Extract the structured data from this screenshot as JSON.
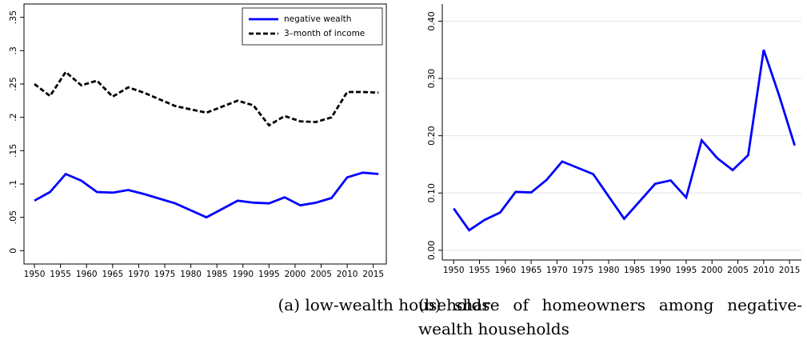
{
  "chart_data": [
    {
      "type": "line",
      "caption": "(a) low-wealth households",
      "x": [
        1950,
        1953,
        1956,
        1959,
        1962,
        1965,
        1968,
        1971,
        1977,
        1983,
        1989,
        1992,
        1995,
        1998,
        2001,
        2004,
        2007,
        2010,
        2013,
        2016
      ],
      "series": [
        {
          "name": "negative wealth",
          "color": "#0000ff",
          "dash": "solid",
          "values": [
            0.075,
            0.088,
            0.115,
            0.105,
            0.088,
            0.087,
            0.091,
            0.085,
            0.071,
            0.05,
            0.075,
            0.072,
            0.071,
            0.08,
            0.068,
            0.072,
            0.079,
            0.11,
            0.117,
            0.115
          ]
        },
        {
          "name": "3–month of income",
          "color": "#000000",
          "dash": "dashed",
          "values": [
            0.25,
            0.232,
            0.268,
            0.248,
            0.255,
            0.231,
            0.245,
            0.237,
            0.217,
            0.207,
            0.225,
            0.218,
            0.188,
            0.202,
            0.194,
            0.193,
            0.2,
            0.238,
            0.238,
            0.237
          ]
        }
      ],
      "xlim": [
        1948,
        2017.5
      ],
      "xticks": [
        1950,
        1955,
        1960,
        1965,
        1970,
        1975,
        1980,
        1985,
        1990,
        1995,
        2000,
        2005,
        2010,
        2015
      ],
      "ylim": [
        -0.02,
        0.37
      ],
      "yticks": [
        0,
        {
          "value": 0.05,
          "label": ".05"
        },
        {
          "value": 0.1,
          "label": ".1"
        },
        {
          "value": 0.15,
          "label": ".15"
        },
        {
          "value": 0.2,
          "label": ".2"
        },
        {
          "value": 0.25,
          "label": ".25"
        },
        {
          "value": 0.3,
          "label": ".3"
        },
        {
          "value": 0.35,
          "label": ".35"
        }
      ],
      "grid": false,
      "legend": "top-right"
    },
    {
      "type": "line",
      "caption": "(b) share of homeowners among negative-wealth households",
      "x": [
        1950,
        1953,
        1956,
        1959,
        1962,
        1965,
        1968,
        1971,
        1977,
        1983,
        1989,
        1992,
        1995,
        1998,
        2001,
        2004,
        2007,
        2010,
        2013,
        2016
      ],
      "series": [
        {
          "color": "#0000ff",
          "dash": "solid",
          "values": [
            0.073,
            0.035,
            0.053,
            0.066,
            0.102,
            0.101,
            0.123,
            0.155,
            0.133,
            0.055,
            0.116,
            0.122,
            0.092,
            0.192,
            0.161,
            0.14,
            0.166,
            0.35,
            0.27,
            0.183
          ]
        }
      ],
      "xlim": [
        1947.8,
        2017.3
      ],
      "xticks": [
        1950,
        1955,
        1960,
        1965,
        1970,
        1975,
        1980,
        1985,
        1990,
        1995,
        2000,
        2005,
        2010,
        2015
      ],
      "ylim": [
        -0.017,
        0.43
      ],
      "yticks": [
        {
          "value": 0,
          "label": "0.00"
        },
        {
          "value": 0.1,
          "label": "0.10"
        },
        {
          "value": 0.2,
          "label": "0.20"
        },
        {
          "value": 0.3,
          "label": "0.30"
        },
        {
          "value": 0.4,
          "label": "0.40"
        }
      ],
      "grid": true
    }
  ]
}
